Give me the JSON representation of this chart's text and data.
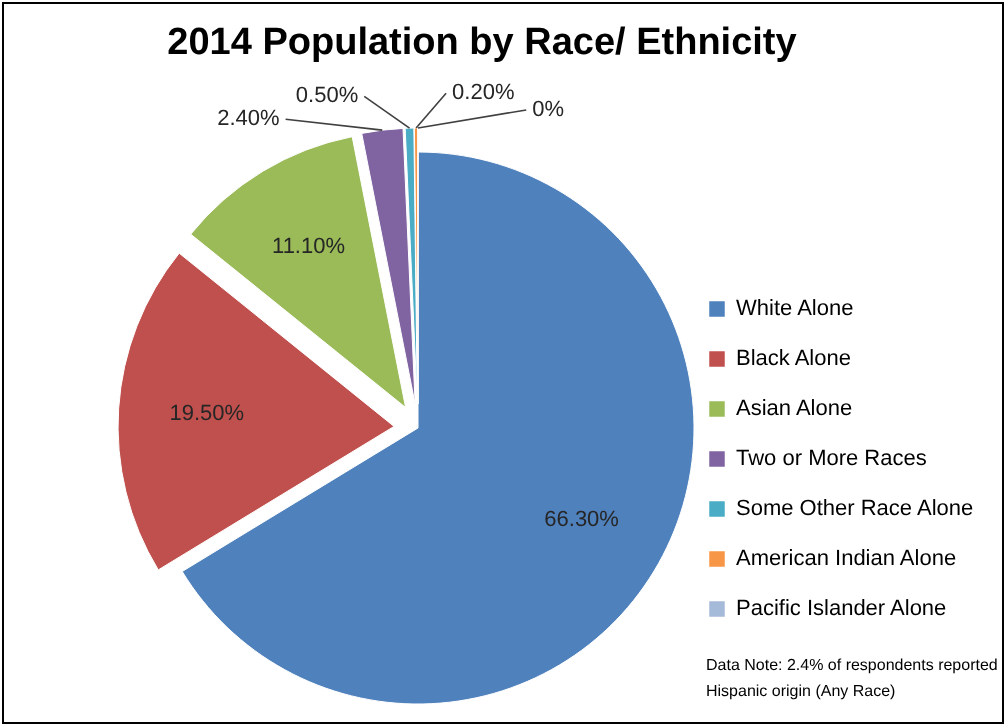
{
  "chart_data": {
    "type": "pie",
    "title": "2014 Population by Race/ Ethnicity",
    "categories": [
      "White Alone",
      "Black Alone",
      "Asian Alone",
      "Two or More Races",
      "Some Other Race Alone",
      "American Indian Alone",
      "Pacific Islander Alone"
    ],
    "values": [
      66.3,
      19.5,
      11.1,
      2.4,
      0.5,
      0.2,
      0
    ],
    "value_labels": [
      "66.30%",
      "19.50%",
      "11.10%",
      "2.40%",
      "0.50%",
      "0.20%",
      "0%"
    ],
    "colors": [
      "#4f81bd",
      "#c0504d",
      "#9bbb59",
      "#8064a2",
      "#4bacc6",
      "#f79646",
      "#a5b9d8"
    ],
    "legend": "right",
    "annotations": [
      "Data Note: 2.4% of respondents reported Hispanic origin (Any Race)"
    ]
  }
}
